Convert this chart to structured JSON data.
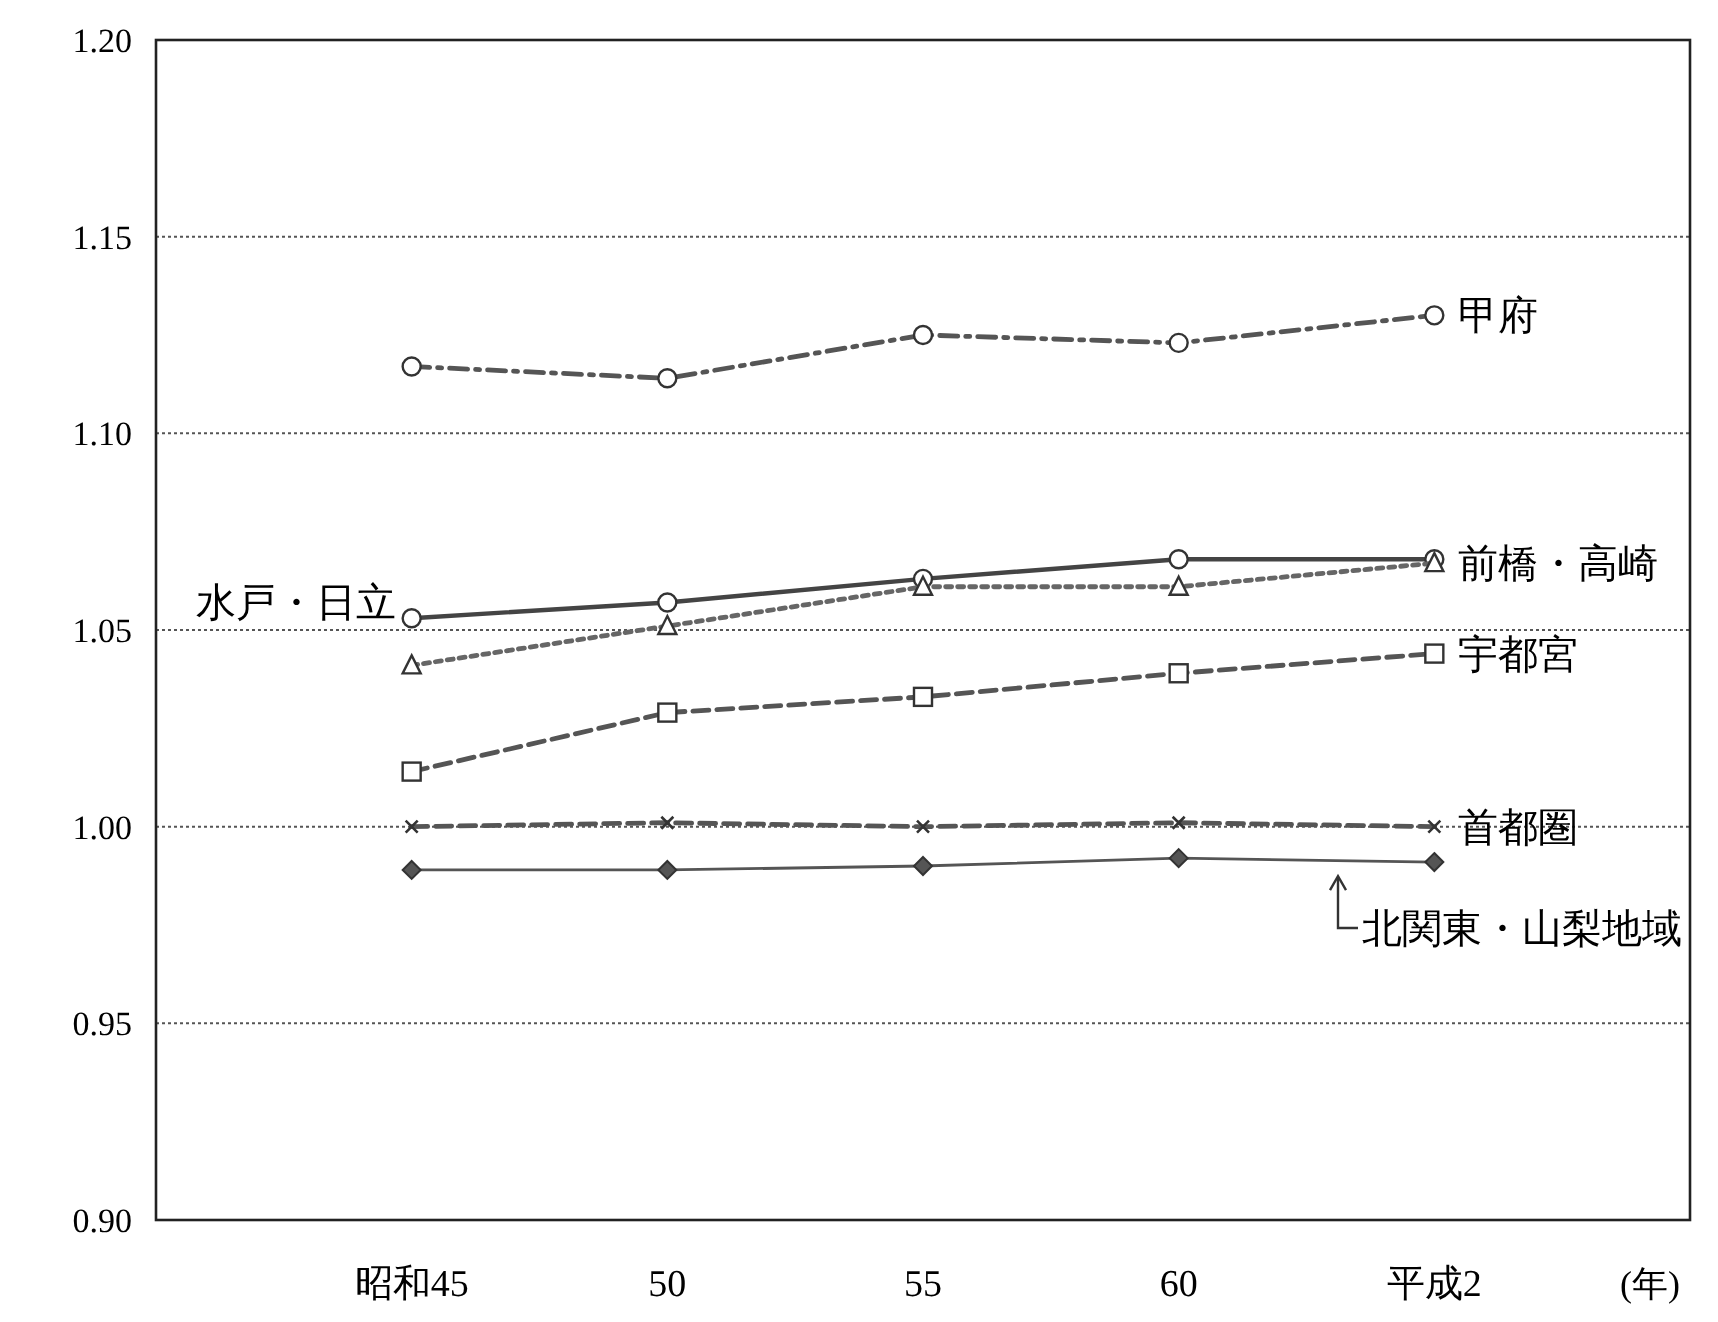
{
  "chart_data": {
    "type": "line",
    "xlabel": "(年)",
    "categories": [
      "昭和45",
      "50",
      "55",
      "60",
      "平成2"
    ],
    "ylim": [
      0.9,
      1.2
    ],
    "yticks": [
      {
        "value": 0.9,
        "label": "0.90"
      },
      {
        "value": 0.95,
        "label": "0.95"
      },
      {
        "value": 1.0,
        "label": "1.00"
      },
      {
        "value": 1.05,
        "label": "1.05"
      },
      {
        "value": 1.1,
        "label": "1.10"
      },
      {
        "value": 1.15,
        "label": "1.15"
      },
      {
        "value": 1.2,
        "label": "1.20"
      }
    ],
    "grid": "y",
    "series": [
      {
        "name": "甲府",
        "color": "#555555",
        "marker": "circle",
        "line_style": "dashdot",
        "values": [
          1.117,
          1.114,
          1.125,
          1.123,
          1.13
        ]
      },
      {
        "name": "水戸・日立",
        "color": "#444444",
        "marker": "circle",
        "line_style": "solid",
        "values": [
          1.053,
          1.057,
          1.063,
          1.068,
          1.068
        ]
      },
      {
        "name": "前橋・高崎",
        "color": "#666666",
        "marker": "triangle",
        "line_style": "dotted",
        "values": [
          1.041,
          1.051,
          1.061,
          1.061,
          1.067
        ]
      },
      {
        "name": "宇都宮",
        "color": "#555555",
        "marker": "square",
        "line_style": "dashed",
        "values": [
          1.014,
          1.029,
          1.033,
          1.039,
          1.044
        ]
      },
      {
        "name": "首都圏",
        "color": "#555555",
        "marker": "cross",
        "line_style": "dashed",
        "values": [
          1.0,
          1.001,
          1.0,
          1.001,
          1.0
        ]
      },
      {
        "name": "北関東・山梨地域",
        "color": "#555555",
        "marker": "diamond",
        "line_style": "solid",
        "values": [
          0.989,
          0.989,
          0.99,
          0.992,
          0.991
        ]
      }
    ]
  }
}
